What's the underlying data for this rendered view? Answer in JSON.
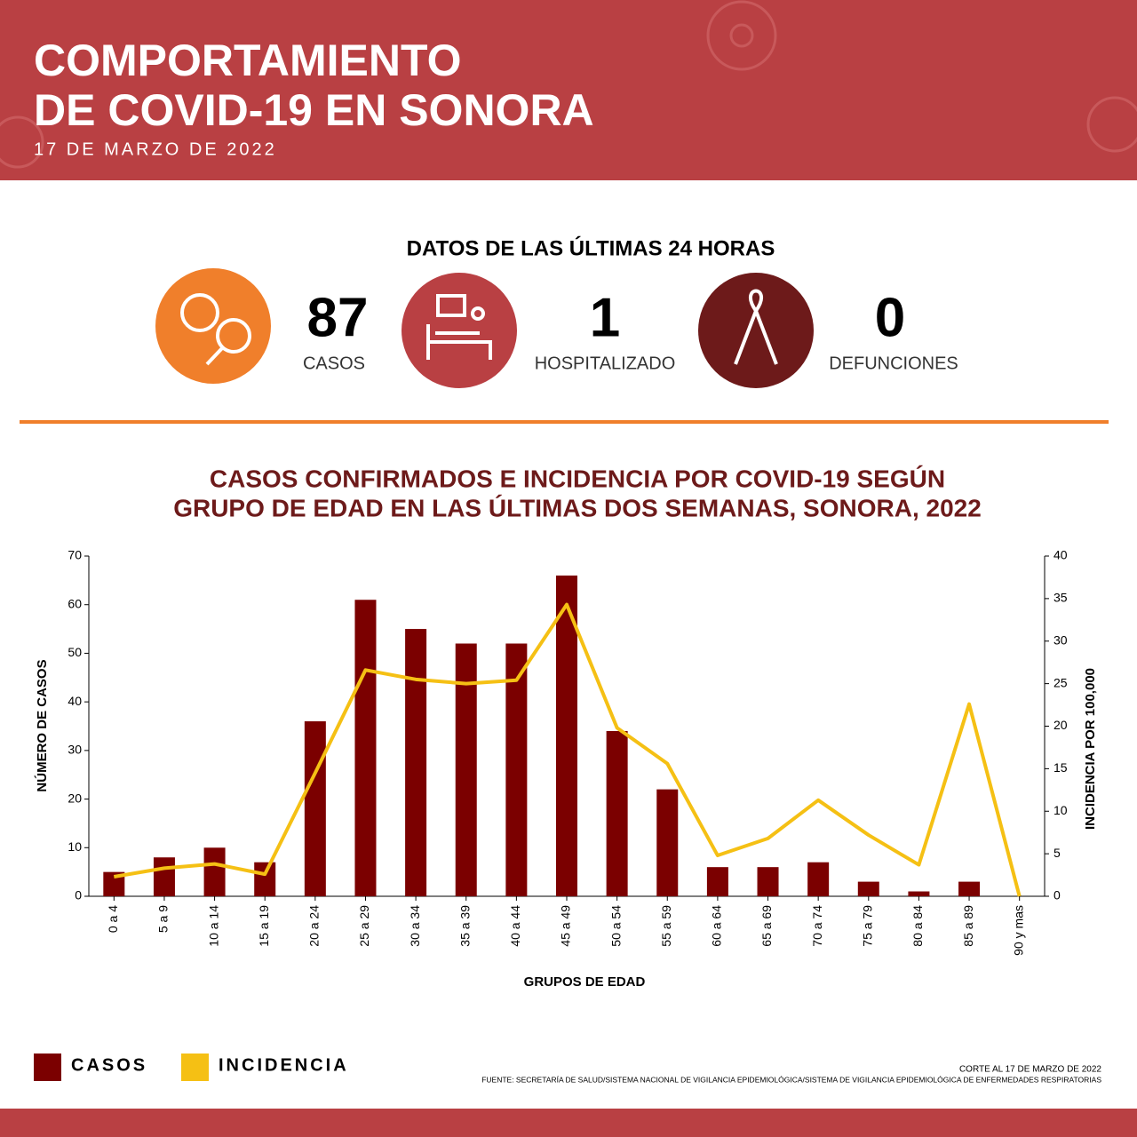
{
  "header": {
    "title": [
      "COMPORTAMIENTO",
      "DE COVID-19 EN SONORA"
    ],
    "date": "17 DE MARZO DE 2022"
  },
  "summary": {
    "heading": "DATOS DE LAS ÚLTIMAS 24 HORAS",
    "stats": [
      {
        "value": "87",
        "label": "CASOS"
      },
      {
        "value": "1",
        "label": "HOSPITALIZADO"
      },
      {
        "value": "0",
        "label": "DEFUNCIONES"
      }
    ]
  },
  "chart_data": {
    "type": "bar",
    "title": [
      "CASOS CONFIRMADOS E INCIDENCIA POR COVID-19 SEGÚN",
      "GRUPO DE EDAD EN LAS ÚLTIMAS DOS SEMANAS, SONORA, 2022"
    ],
    "x_label": "GRUPOS DE EDAD",
    "y_label": "NÚMERO DE CASOS",
    "y2_label": "INCIDENCIA POR 100,000",
    "categories": [
      "0 a 4",
      "5 a 9",
      "10 a 14",
      "15 a 19",
      "20 a 24",
      "25 a 29",
      "30 a 34",
      "35 a 39",
      "40 a 44",
      "45 a 49",
      "50 a 54",
      "55 a 59",
      "60 a 64",
      "65 a 69",
      "70 a 74",
      "75 a 79",
      "80 a 84",
      "85 a 89",
      "90 y mas"
    ],
    "series": [
      {
        "name": "CASOS",
        "color": "#7b0000",
        "type": "bar",
        "values": [
          5,
          8,
          10,
          7,
          36,
          61,
          55,
          52,
          52,
          66,
          34,
          22,
          6,
          6,
          7,
          3,
          1,
          3,
          0
        ]
      },
      {
        "name": "INCIDENCIA",
        "color": "#f5c014",
        "type": "line",
        "axis": "y2",
        "values": [
          2.3,
          3.3,
          3.8,
          2.6,
          14.5,
          26.6,
          25.5,
          25.0,
          25.4,
          34.3,
          19.8,
          15.6,
          4.8,
          6.8,
          11.3,
          7.2,
          3.7,
          22.6,
          0
        ]
      }
    ],
    "ylim": [
      0,
      70
    ],
    "yticks": [
      0,
      10,
      20,
      30,
      40,
      50,
      60,
      70
    ],
    "y2lim": [
      0,
      40
    ],
    "y2ticks": [
      0,
      5,
      10,
      15,
      20,
      25,
      30,
      35,
      40
    ]
  },
  "footer": {
    "cutoff": "CORTE AL 17 DE MARZO DE 2022",
    "source": "FUENTE: SECRETARÍA DE SALUD/SISTEMA NACIONAL DE VIGILANCIA EPIDEMIOLÓGICA/SISTEMA DE VIGILANCIA EPIDEMIOLÓGICA DE ENFERMEDADES RESPIRATORIAS"
  }
}
